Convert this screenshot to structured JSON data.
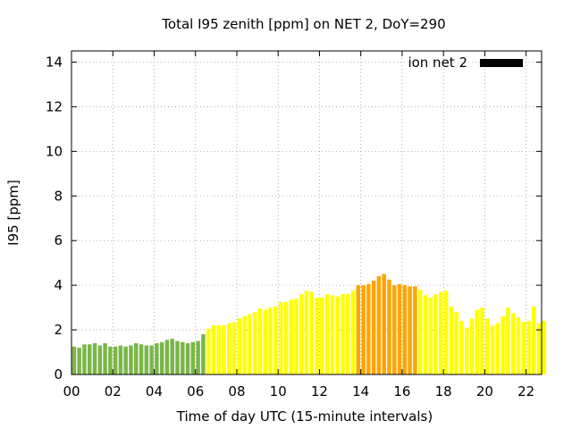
{
  "chart_data": {
    "type": "bar",
    "title": "Total I95 zenith [ppm] on NET 2, DoY=290",
    "xlabel": "Time of day UTC (15-minute intervals)",
    "ylabel": "I95 [ppm]",
    "xlim": [
      0,
      22.75
    ],
    "ylim": [
      0,
      14.5
    ],
    "x_step_hours": 0.25,
    "x_ticks": [
      "00",
      "02",
      "04",
      "06",
      "08",
      "10",
      "12",
      "14",
      "16",
      "18",
      "20",
      "22"
    ],
    "y_ticks": [
      "0",
      "2",
      "4",
      "6",
      "8",
      "10",
      "12",
      "14"
    ],
    "grid": true,
    "legend": {
      "label": "ion net 2",
      "position": "top-right",
      "swatch_color": "#000000"
    },
    "colors": {
      "green": "#7ab648",
      "yellow": "#ffff00",
      "orange": "#ffa500"
    },
    "series": [
      {
        "values": [
          1.25,
          1.2,
          1.35,
          1.35,
          1.4,
          1.3,
          1.4,
          1.25,
          1.25,
          1.3,
          1.25,
          1.3,
          1.4,
          1.35,
          1.3,
          1.3,
          1.4,
          1.45,
          1.55,
          1.6,
          1.5,
          1.45,
          1.4,
          1.45,
          1.5,
          1.8,
          2.05,
          2.2,
          2.2,
          2.2,
          2.3,
          2.35,
          2.5,
          2.6,
          2.7,
          2.8,
          2.95,
          2.9,
          3.0,
          3.05,
          3.25,
          3.25,
          3.35,
          3.4,
          3.6,
          3.75,
          3.7,
          3.45,
          3.45,
          3.6,
          3.55,
          3.5,
          3.6,
          3.6,
          3.75,
          4.0,
          4.0,
          4.05,
          4.2,
          4.4,
          4.5,
          4.25,
          4.0,
          4.05,
          4.0,
          3.95,
          3.95,
          3.8,
          3.55,
          3.45,
          3.6,
          3.7,
          3.75,
          3.05,
          2.8,
          2.4,
          2.1,
          2.5,
          2.9,
          3.0,
          2.5,
          2.2,
          2.3,
          2.6,
          3.0,
          2.75,
          2.55,
          2.35,
          2.4,
          3.05,
          2.3,
          2.4
        ],
        "colors": [
          "green",
          "green",
          "green",
          "green",
          "green",
          "green",
          "green",
          "green",
          "green",
          "green",
          "green",
          "green",
          "green",
          "green",
          "green",
          "green",
          "green",
          "green",
          "green",
          "green",
          "green",
          "green",
          "green",
          "green",
          "green",
          "green",
          "yellow",
          "yellow",
          "yellow",
          "yellow",
          "yellow",
          "yellow",
          "yellow",
          "yellow",
          "yellow",
          "yellow",
          "yellow",
          "yellow",
          "yellow",
          "yellow",
          "yellow",
          "yellow",
          "yellow",
          "yellow",
          "yellow",
          "yellow",
          "yellow",
          "yellow",
          "yellow",
          "yellow",
          "yellow",
          "yellow",
          "yellow",
          "yellow",
          "yellow",
          "orange",
          "orange",
          "orange",
          "orange",
          "orange",
          "orange",
          "orange",
          "orange",
          "orange",
          "orange",
          "orange",
          "orange",
          "yellow",
          "yellow",
          "yellow",
          "yellow",
          "yellow",
          "yellow",
          "yellow",
          "yellow",
          "yellow",
          "yellow",
          "yellow",
          "yellow",
          "yellow",
          "yellow",
          "yellow",
          "yellow",
          "yellow",
          "yellow",
          "yellow",
          "yellow",
          "yellow",
          "yellow",
          "yellow",
          "yellow",
          "yellow"
        ]
      }
    ]
  }
}
